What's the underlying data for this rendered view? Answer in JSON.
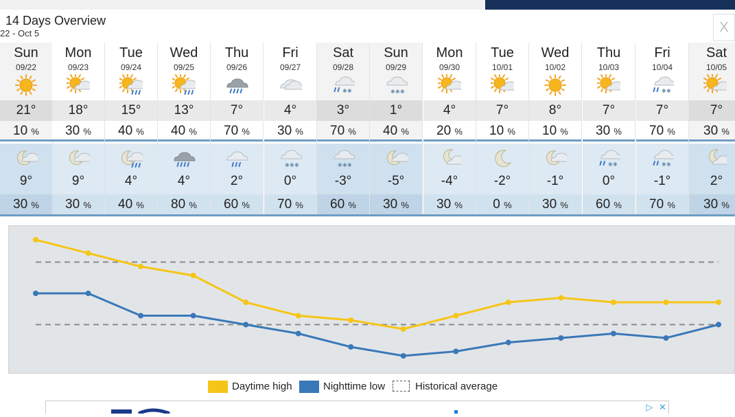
{
  "header": {
    "title": "14 Days Overview",
    "subtitle": "22 - Oct 5",
    "close_label": "X"
  },
  "days": [
    {
      "day": "Sun",
      "date": "09/22",
      "day_icon": "sunny-icon",
      "high": "21°",
      "day_pct": "10",
      "night_icon": "cloudy-night-icon",
      "low": "9°",
      "night_pct": "30"
    },
    {
      "day": "Mon",
      "date": "09/23",
      "day_icon": "partly-sunny-icon",
      "high": "18°",
      "day_pct": "30",
      "night_icon": "cloudy-night-icon",
      "low": "9°",
      "night_pct": "30"
    },
    {
      "day": "Tue",
      "date": "09/24",
      "day_icon": "sun-rain-icon",
      "high": "15°",
      "day_pct": "40",
      "night_icon": "night-rain-icon",
      "low": "4°",
      "night_pct": "40"
    },
    {
      "day": "Wed",
      "date": "09/25",
      "day_icon": "sun-rain-icon",
      "high": "13°",
      "day_pct": "40",
      "night_icon": "rain-icon",
      "low": "4°",
      "night_pct": "80"
    },
    {
      "day": "Thu",
      "date": "09/26",
      "day_icon": "rain-icon",
      "high": "7°",
      "day_pct": "70",
      "night_icon": "light-rain-icon",
      "low": "2°",
      "night_pct": "60"
    },
    {
      "day": "Fri",
      "date": "09/27",
      "day_icon": "cloudy-icon",
      "high": "4°",
      "day_pct": "30",
      "night_icon": "snow-icon",
      "low": "0°",
      "night_pct": "70"
    },
    {
      "day": "Sat",
      "date": "09/28",
      "day_icon": "sleet-icon",
      "high": "3°",
      "day_pct": "70",
      "night_icon": "snow-icon",
      "low": "-3°",
      "night_pct": "60"
    },
    {
      "day": "Sun",
      "date": "09/29",
      "day_icon": "snow-icon",
      "high": "1°",
      "day_pct": "40",
      "night_icon": "cloudy-night-icon",
      "low": "-5°",
      "night_pct": "30"
    },
    {
      "day": "Mon",
      "date": "09/30",
      "day_icon": "partly-sunny-icon",
      "high": "4°",
      "day_pct": "20",
      "night_icon": "moon-cloud-icon",
      "low": "-4°",
      "night_pct": "30"
    },
    {
      "day": "Tue",
      "date": "10/01",
      "day_icon": "sun-cloud-icon",
      "high": "7°",
      "day_pct": "10",
      "night_icon": "moon-icon",
      "low": "-2°",
      "night_pct": "0"
    },
    {
      "day": "Wed",
      "date": "10/02",
      "day_icon": "sunny-icon",
      "high": "8°",
      "day_pct": "10",
      "night_icon": "cloudy-night-icon",
      "low": "-1°",
      "night_pct": "30"
    },
    {
      "day": "Thu",
      "date": "10/03",
      "day_icon": "sun-cloud-icon",
      "high": "7°",
      "day_pct": "30",
      "night_icon": "sleet-icon",
      "low": "0°",
      "night_pct": "60"
    },
    {
      "day": "Fri",
      "date": "10/04",
      "day_icon": "sleet-icon",
      "high": "7°",
      "day_pct": "70",
      "night_icon": "sleet-icon",
      "low": "-1°",
      "night_pct": "70"
    },
    {
      "day": "Sat",
      "date": "10/05",
      "day_icon": "sun-cloud-icon",
      "high": "7°",
      "day_pct": "30",
      "night_icon": "moon-cloud-icon",
      "low": "2°",
      "night_pct": "30"
    }
  ],
  "percent_sign": "%",
  "chart_data": {
    "type": "line",
    "x": [
      "09/22",
      "09/23",
      "09/24",
      "09/25",
      "09/26",
      "09/27",
      "09/28",
      "09/29",
      "09/30",
      "10/01",
      "10/02",
      "10/03",
      "10/04",
      "10/05"
    ],
    "series": [
      {
        "name": "Daytime high",
        "color": "#f5c518",
        "values": [
          21,
          18,
          15,
          13,
          7,
          4,
          3,
          1,
          4,
          7,
          8,
          7,
          7,
          7
        ]
      },
      {
        "name": "Nighttime low",
        "color": "#3a78b8",
        "values": [
          9,
          9,
          4,
          4,
          2,
          0,
          -3,
          -5,
          -4,
          -2,
          -1,
          0,
          -1,
          2
        ]
      }
    ],
    "historical_average": [
      16,
      2
    ],
    "ylim": [
      -5,
      21
    ],
    "legend": [
      "Daytime high",
      "Nighttime low",
      "Historical average"
    ],
    "legend_position": "bottom"
  },
  "ad": {
    "choices_label": "▷",
    "close_label": "✕"
  }
}
